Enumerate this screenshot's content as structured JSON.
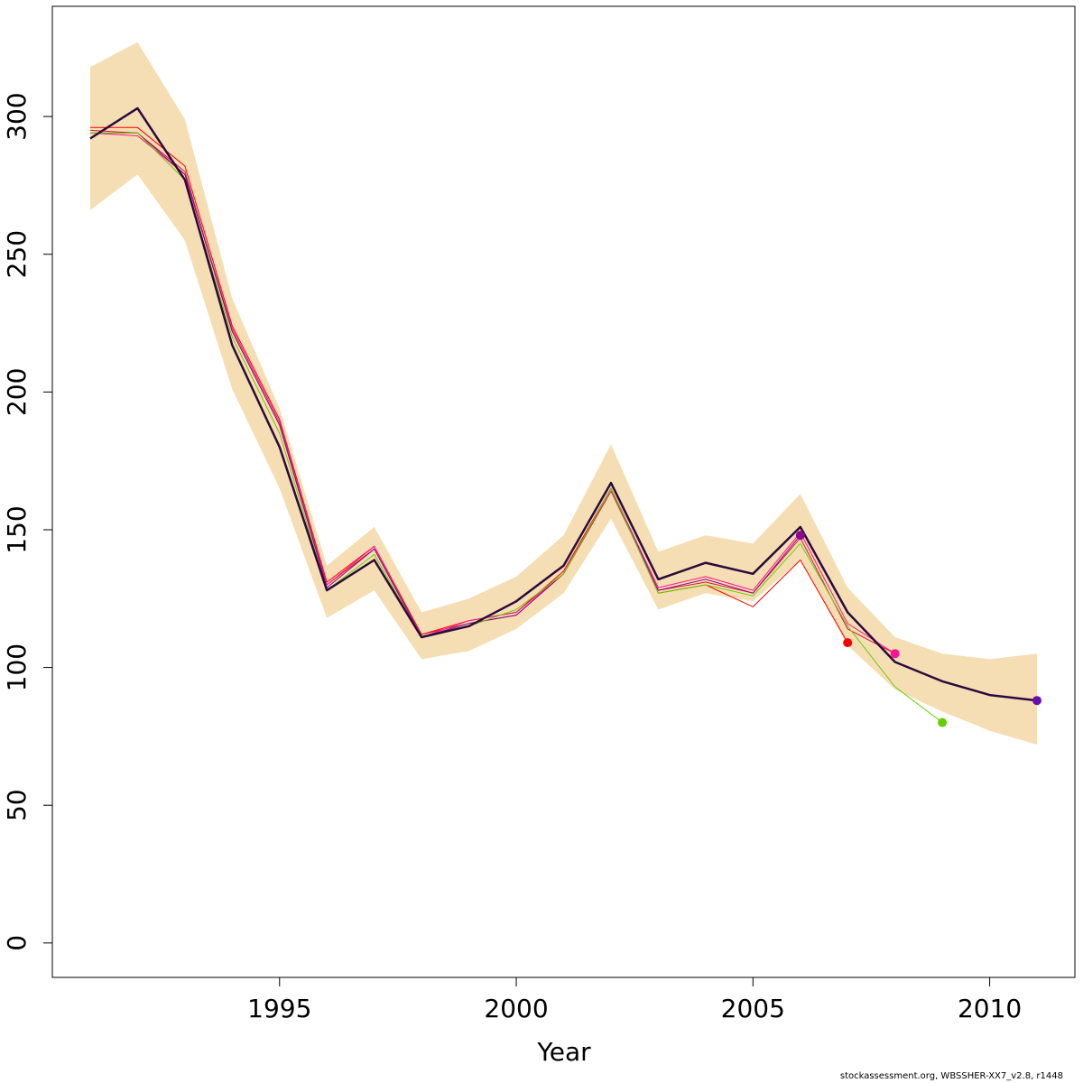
{
  "chart_data": {
    "type": "line",
    "xlabel": "Year",
    "ylabel": "",
    "xlim": [
      1990.2,
      2011.8
    ],
    "ylim": [
      -12.5,
      340
    ],
    "x_ticks": [
      1995,
      2000,
      2005,
      2010
    ],
    "y_ticks": [
      0,
      50,
      100,
      150,
      200,
      250,
      300
    ],
    "grid": false,
    "band": {
      "color": "#f5deb3",
      "x": [
        1991,
        1992,
        1993,
        1994,
        1995,
        1996,
        1997,
        1998,
        1999,
        2000,
        2001,
        2002,
        2003,
        2004,
        2005,
        2006,
        2007,
        2008,
        2009,
        2010,
        2011
      ],
      "lower": [
        266,
        279,
        255,
        201,
        165,
        118,
        128,
        103,
        106,
        114,
        127,
        154,
        121,
        127,
        124,
        139,
        108,
        92,
        84,
        77,
        72
      ],
      "upper": [
        318,
        327,
        299,
        234,
        194,
        137,
        151,
        120,
        125,
        133,
        148,
        181,
        142,
        148,
        145,
        163,
        129,
        111,
        105,
        103,
        105
      ]
    },
    "series": [
      {
        "color": "#ff0000",
        "width": 1,
        "x": [
          1991,
          1992,
          1993,
          1994,
          1995,
          1996,
          1997,
          1998,
          1999,
          2000,
          2001,
          2002,
          2003,
          2004,
          2005,
          2006,
          2007
        ],
        "values": [
          296,
          296,
          282,
          224,
          190,
          131,
          144,
          112,
          117,
          120,
          135,
          165,
          127,
          130,
          122,
          139,
          109
        ],
        "end_point": true
      },
      {
        "color": "#dc143c",
        "width": 1,
        "x": [
          1991,
          1992,
          1993,
          1994,
          1995,
          1996,
          1997,
          1998,
          1999,
          2000,
          2001,
          2002,
          2003,
          2004,
          2005,
          2006,
          2007,
          2008
        ],
        "values": [
          295,
          294,
          280,
          222,
          188,
          130,
          143,
          112,
          116,
          119,
          134,
          164,
          128,
          131,
          127,
          147,
          114,
          105
        ],
        "end_point": false
      },
      {
        "color": "#ff1493",
        "width": 1,
        "x": [
          1991,
          1992,
          1993,
          1994,
          1995,
          1996,
          1997,
          1998,
          1999,
          2000,
          2001,
          2002,
          2003,
          2004,
          2005,
          2006,
          2007,
          2008
        ],
        "values": [
          294,
          293,
          279,
          223,
          189,
          130,
          144,
          111,
          117,
          120,
          134,
          165,
          129,
          133,
          128,
          149,
          116,
          105
        ],
        "end_point": true
      },
      {
        "color": "#8b0a8b",
        "width": 1,
        "x": [
          1991,
          1992,
          1993,
          1994,
          1995,
          1996,
          1997,
          1998,
          1999,
          2000,
          2001,
          2002,
          2003,
          2004,
          2005,
          2006
        ],
        "values": [
          294,
          294,
          279,
          222,
          188,
          129,
          143,
          111,
          116,
          119,
          134,
          165,
          128,
          132,
          127,
          148
        ],
        "end_point": true
      },
      {
        "color": "#66cd00",
        "width": 1,
        "x": [
          1991,
          1992,
          1993,
          1994,
          1995,
          1996,
          1997,
          1998,
          1999,
          2000,
          2001,
          2002,
          2003,
          2004,
          2005,
          2006,
          2007,
          2008,
          2009
        ],
        "values": [
          294,
          294,
          277,
          220,
          185,
          128,
          141,
          111,
          115,
          121,
          134,
          165,
          127,
          130,
          126,
          145,
          115,
          93,
          80
        ],
        "end_point": true
      },
      {
        "color": "#6a0dad",
        "width": 1,
        "x": [
          2010,
          2011
        ],
        "values": [
          90,
          88
        ],
        "end_point": true
      },
      {
        "color": "#2b0a3d",
        "width": 2.5,
        "x": [
          1991,
          1992,
          1993,
          1994,
          1995,
          1996,
          1997,
          1998,
          1999,
          2000,
          2001,
          2002,
          2003,
          2004,
          2005,
          2006,
          2007,
          2008,
          2009,
          2010,
          2011
        ],
        "values": [
          292,
          303,
          277,
          217,
          180,
          128,
          139,
          111,
          115,
          124,
          137,
          167,
          132,
          138,
          134,
          151,
          120,
          102,
          95,
          90,
          88
        ],
        "end_point": false
      }
    ],
    "footer": "stockassessment.org, WBSSHER-XX7_v2.8, r1448"
  }
}
